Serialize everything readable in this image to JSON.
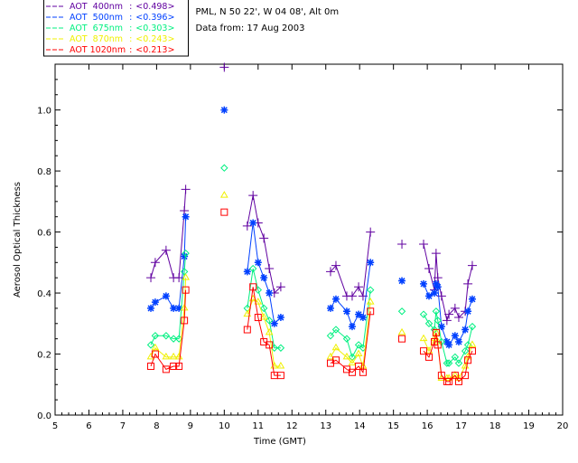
{
  "header": {
    "location": "PML, N 50 22', W 04 08', Alt 0m",
    "date": "Data from: 17 Aug 2003"
  },
  "chart_data": {
    "type": "line",
    "title": "",
    "xlabel": "Time (GMT)",
    "ylabel": "Aerosol Optical Thickness",
    "xlim": [
      5,
      20
    ],
    "ylim": [
      0,
      1.15
    ],
    "xticks": [
      "5",
      "6",
      "7",
      "8",
      "9",
      "10",
      "11",
      "12",
      "13",
      "14",
      "15",
      "16",
      "17",
      "18",
      "19",
      "20"
    ],
    "yticks": [
      "0.0",
      "0.2",
      "0.4",
      "0.6",
      "0.8",
      "1.0"
    ],
    "legend_position": "top-left",
    "groups": [
      {
        "x": [
          7.83,
          7.96,
          8.28,
          8.5,
          8.66,
          8.82,
          8.86
        ]
      },
      {
        "x": [
          10.0
        ]
      },
      {
        "x": [
          10.68,
          10.85,
          11.0,
          11.17,
          11.33,
          11.48,
          11.67
        ]
      },
      {
        "x": [
          13.14,
          13.3,
          13.62,
          13.78,
          13.97,
          14.1,
          14.32
        ]
      },
      {
        "x": [
          15.25
        ]
      },
      {
        "x": [
          15.89,
          16.05,
          16.21,
          16.26,
          16.31,
          16.42,
          16.58,
          16.64,
          16.82,
          16.93,
          17.12,
          17.2,
          17.33
        ]
      }
    ],
    "series": [
      {
        "name": "AOT  400nm",
        "mean": "<0.498>",
        "color": "#6000A0",
        "marker": "plus",
        "values": [
          [
            0.45,
            0.5,
            0.54,
            0.45,
            0.45,
            0.67,
            0.74
          ],
          [
            1.14
          ],
          [
            0.62,
            0.72,
            0.63,
            0.58,
            0.48,
            0.4,
            0.42
          ],
          [
            0.47,
            0.49,
            0.39,
            0.39,
            0.42,
            0.39,
            0.6
          ],
          [
            0.56
          ],
          [
            0.56,
            0.48,
            0.41,
            0.53,
            0.45,
            0.39,
            0.31,
            0.33,
            0.35,
            0.32,
            0.34,
            0.43,
            0.49
          ]
        ]
      },
      {
        "name": "AOT  500nm",
        "mean": "<0.396>",
        "color": "#0040FF",
        "marker": "asterisk",
        "values": [
          [
            0.35,
            0.37,
            0.39,
            0.35,
            0.35,
            0.52,
            0.65
          ],
          [
            1.0
          ],
          [
            0.47,
            0.63,
            0.5,
            0.45,
            0.4,
            0.3,
            0.32
          ],
          [
            0.35,
            0.38,
            0.34,
            0.29,
            0.33,
            0.32,
            0.5
          ],
          [
            0.44
          ],
          [
            0.43,
            0.39,
            0.4,
            0.43,
            0.42,
            0.29,
            0.24,
            0.23,
            0.26,
            0.24,
            0.28,
            0.34,
            0.38
          ]
        ]
      },
      {
        "name": "AOT  675nm",
        "mean": "<0.303>",
        "color": "#00F080",
        "marker": "diamond",
        "values": [
          [
            0.23,
            0.26,
            0.26,
            0.25,
            0.25,
            0.47,
            0.53
          ],
          [
            0.81
          ],
          [
            0.35,
            0.48,
            0.41,
            0.35,
            0.31,
            0.22,
            0.22
          ],
          [
            0.26,
            0.28,
            0.25,
            0.19,
            0.23,
            0.22,
            0.41
          ],
          [
            0.34
          ],
          [
            0.33,
            0.3,
            0.28,
            0.34,
            0.31,
            0.24,
            0.17,
            0.17,
            0.19,
            0.17,
            0.21,
            0.23,
            0.29
          ]
        ]
      },
      {
        "name": "AOT  870nm",
        "mean": "<0.243>",
        "color": "#F0F000",
        "marker": "triangle",
        "values": [
          [
            0.19,
            0.22,
            0.19,
            0.19,
            0.19,
            0.35,
            0.45
          ],
          [
            0.72
          ],
          [
            0.33,
            0.38,
            0.37,
            0.32,
            0.27,
            0.16,
            0.16
          ],
          [
            0.19,
            0.22,
            0.19,
            0.17,
            0.2,
            0.16,
            0.37
          ],
          [
            0.27
          ],
          [
            0.25,
            0.21,
            0.25,
            0.27,
            0.24,
            0.12,
            0.12,
            0.12,
            0.13,
            0.12,
            0.16,
            0.19,
            0.23
          ]
        ]
      },
      {
        "name": "AOT 1020nm",
        "mean": "<0.213>",
        "color": "#FF0000",
        "marker": "square",
        "values": [
          [
            0.16,
            0.2,
            0.15,
            0.16,
            0.16,
            0.31,
            0.41
          ],
          [
            0.665
          ],
          [
            0.28,
            0.42,
            0.32,
            0.24,
            0.23,
            0.13,
            0.13
          ],
          [
            0.17,
            0.18,
            0.15,
            0.14,
            0.16,
            0.14,
            0.34
          ],
          [
            0.25
          ],
          [
            0.21,
            0.19,
            0.24,
            0.27,
            0.23,
            0.13,
            0.11,
            0.11,
            0.13,
            0.11,
            0.13,
            0.18,
            0.21
          ]
        ]
      }
    ]
  }
}
